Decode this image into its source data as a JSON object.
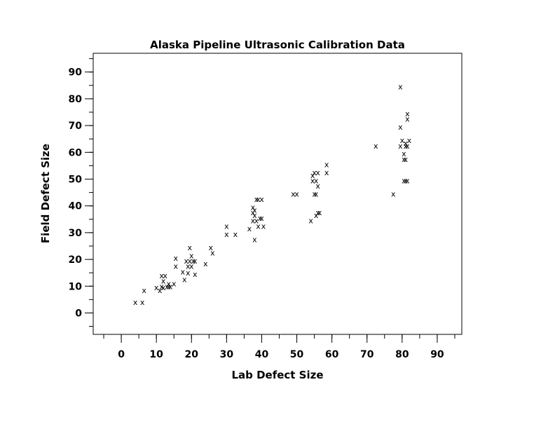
{
  "chart_data": {
    "type": "scatter",
    "title": "Alaska Pipeline Ultrasonic Calibration Data",
    "xlabel": "Lab Defect Size",
    "ylabel": "Field Defect Size",
    "xlim": [
      -8,
      97
    ],
    "ylim": [
      -8,
      97
    ],
    "xticks": [
      0,
      10,
      20,
      30,
      40,
      50,
      60,
      70,
      80,
      90
    ],
    "yticks": [
      0,
      10,
      20,
      30,
      40,
      50,
      60,
      70,
      80,
      90
    ],
    "xtick_labels": [
      "0",
      "10",
      "20",
      "30",
      "40",
      "50",
      "60",
      "70",
      "80",
      "90"
    ],
    "ytick_labels": [
      "0",
      "10",
      "20",
      "30",
      "40",
      "50",
      "60",
      "70",
      "80",
      "90"
    ],
    "minor_step": 5,
    "marker": "x",
    "grid": false,
    "points": [
      [
        4,
        4
      ],
      [
        6,
        4
      ],
      [
        6.5,
        8.5
      ],
      [
        10,
        9.5
      ],
      [
        11,
        8.5
      ],
      [
        11.5,
        10
      ],
      [
        12,
        9.5
      ],
      [
        11.5,
        14
      ],
      [
        12.5,
        14
      ],
      [
        12,
        12
      ],
      [
        13,
        10
      ],
      [
        13.5,
        10
      ],
      [
        13.5,
        11
      ],
      [
        14,
        10
      ],
      [
        15,
        11
      ],
      [
        15.5,
        17.5
      ],
      [
        15.5,
        20.5
      ],
      [
        17.5,
        15.5
      ],
      [
        18,
        12.5
      ],
      [
        18.5,
        19.5
      ],
      [
        19,
        15
      ],
      [
        19,
        17.5
      ],
      [
        19.5,
        24.5
      ],
      [
        19.5,
        19.5
      ],
      [
        20,
        21.5
      ],
      [
        20,
        17.5
      ],
      [
        20.5,
        19.5
      ],
      [
        21,
        14.5
      ],
      [
        21,
        19.5
      ],
      [
        24,
        18.5
      ],
      [
        25.5,
        24.5
      ],
      [
        26,
        22.5
      ],
      [
        30,
        29.5
      ],
      [
        30,
        32.5
      ],
      [
        32.5,
        29.5
      ],
      [
        36.5,
        31.5
      ],
      [
        37.5,
        34.5
      ],
      [
        37.5,
        37.5
      ],
      [
        37.5,
        39.5
      ],
      [
        38,
        27.5
      ],
      [
        38,
        36.5
      ],
      [
        38,
        38.5
      ],
      [
        38.5,
        42.5
      ],
      [
        38.5,
        34.5
      ],
      [
        39,
        32.5
      ],
      [
        39,
        42.5
      ],
      [
        39.5,
        35.5
      ],
      [
        40,
        42.5
      ],
      [
        40,
        35.5
      ],
      [
        40.5,
        32.5
      ],
      [
        49,
        44.5
      ],
      [
        50,
        44.5
      ],
      [
        54,
        34.5
      ],
      [
        54.5,
        49.5
      ],
      [
        54.5,
        51.5
      ],
      [
        55,
        52.5
      ],
      [
        55,
        44.5
      ],
      [
        55.5,
        44.5
      ],
      [
        55.5,
        49.5
      ],
      [
        55.5,
        36.5
      ],
      [
        56,
        47.5
      ],
      [
        56,
        52.5
      ],
      [
        56,
        37.5
      ],
      [
        56.5,
        37.5
      ],
      [
        58.5,
        55.5
      ],
      [
        58.5,
        52.5
      ],
      [
        72.5,
        62.5
      ],
      [
        77.5,
        44.5
      ],
      [
        79.5,
        84.5
      ],
      [
        79.5,
        62.5
      ],
      [
        79.5,
        69.5
      ],
      [
        80,
        64.5
      ],
      [
        80.5,
        57.5
      ],
      [
        80.5,
        59.5
      ],
      [
        80.5,
        49.5
      ],
      [
        81,
        57.5
      ],
      [
        81,
        62.5
      ],
      [
        81,
        49.5
      ],
      [
        81,
        63.5
      ],
      [
        81.5,
        72.5
      ],
      [
        81.5,
        49.5
      ],
      [
        81.5,
        62.5
      ],
      [
        81.5,
        74.5
      ],
      [
        82,
        64.5
      ]
    ]
  }
}
